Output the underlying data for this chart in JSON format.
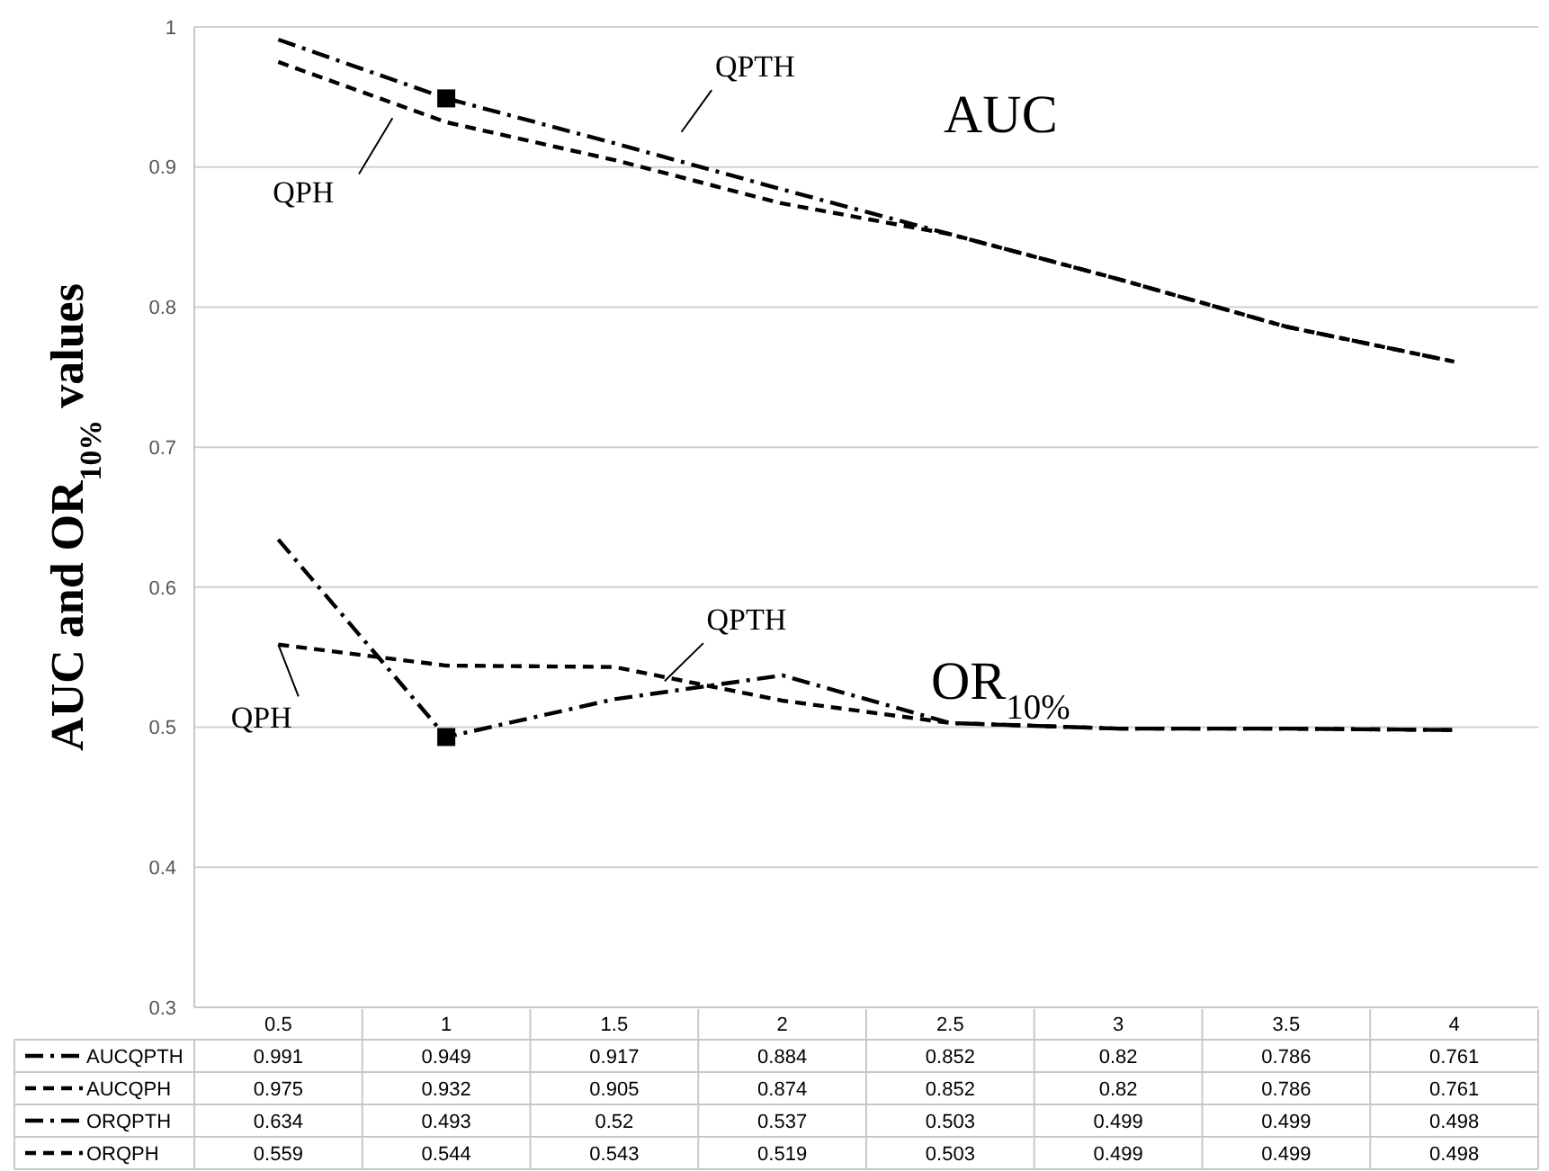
{
  "chart_data": {
    "type": "line",
    "ylabel": "AUC and OR$_{10%}$ values",
    "categories": [
      "0.5",
      "1",
      "1.5",
      "2",
      "2.5",
      "3",
      "3.5",
      "4"
    ],
    "ylim": [
      0.3,
      1
    ],
    "yticks": [
      0.3,
      0.4,
      0.5,
      0.6,
      0.7,
      0.8,
      0.9,
      1
    ],
    "grid": "y",
    "legend": "bottom",
    "marker": "none",
    "series": [
      {
        "name": "AUCQPTH",
        "color": "#000000",
        "line_style": "dashdot",
        "values": [
          0.991,
          0.949,
          0.917,
          0.884,
          0.852,
          0.82,
          0.786,
          0.761
        ],
        "value_labels": [
          "0.991",
          "0.949",
          "0.917",
          "0.884",
          "0.852",
          "0.82",
          "0.786",
          "0.761"
        ]
      },
      {
        "name": "AUCQPH",
        "color": "#000000",
        "line_style": "dashed",
        "values": [
          0.975,
          0.932,
          0.905,
          0.874,
          0.852,
          0.82,
          0.786,
          0.761
        ],
        "value_labels": [
          "0.975",
          "0.932",
          "0.905",
          "0.874",
          "0.852",
          "0.82",
          "0.786",
          "0.761"
        ]
      },
      {
        "name": "ORQPTH",
        "color": "#000000",
        "line_style": "dashdot",
        "values": [
          0.634,
          0.493,
          0.52,
          0.537,
          0.503,
          0.499,
          0.499,
          0.498
        ],
        "value_labels": [
          "0.634",
          "0.493",
          "0.52",
          "0.537",
          "0.503",
          "0.499",
          "0.499",
          "0.498"
        ]
      },
      {
        "name": "ORQPH",
        "color": "#000000",
        "line_style": "dashed",
        "values": [
          0.559,
          0.544,
          0.543,
          0.519,
          0.503,
          0.499,
          0.499,
          0.498
        ],
        "value_labels": [
          "0.559",
          "0.544",
          "0.543",
          "0.519",
          "0.503",
          "0.499",
          "0.499",
          "0.498"
        ]
      },
      {
        "type": "scatter",
        "color": "#000000",
        "marker": "square",
        "x": [
          "1",
          "1"
        ],
        "values": [
          0.949,
          0.493
        ]
      }
    ],
    "annotations": [
      "QPTH",
      "QPH",
      "AUC",
      {
        "text": "QPTH",
        "y": 0.533
      },
      {
        "text": "QPH",
        "x": "0.5",
        "y": 0.559
      },
      "OR$_{10%}$"
    ]
  }
}
